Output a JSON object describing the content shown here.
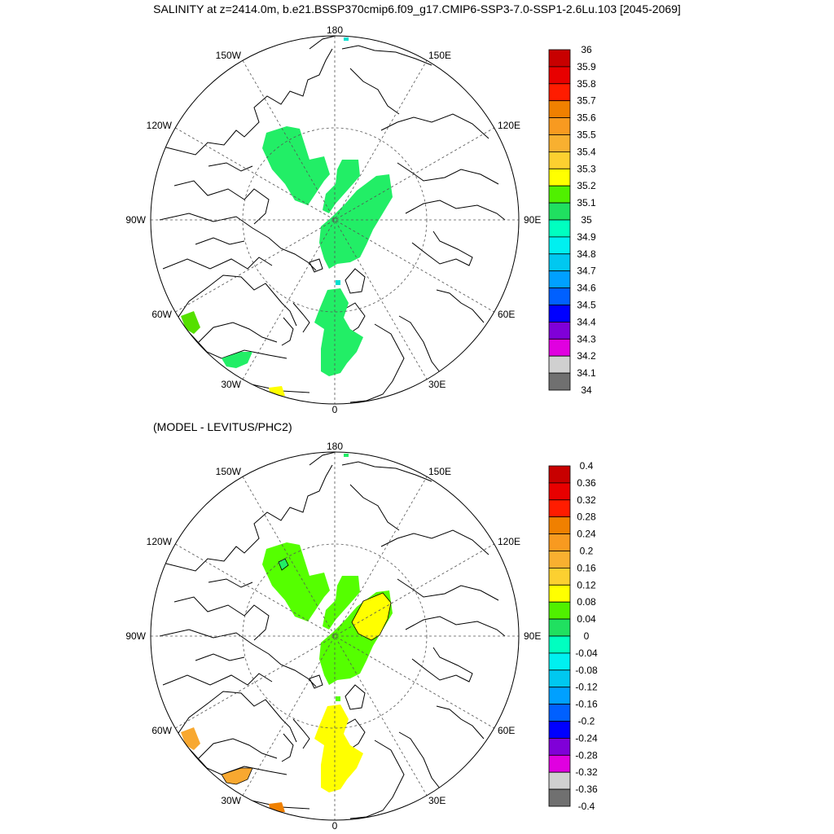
{
  "title": "SALINITY at z=2414.0m, b.e21.BSSP370cmip6.f09_g17.CMIP6-SSP3-7.0-SSP1-2.6Lu.103 [2045-2069]",
  "subtitle": "(MODEL - LEVITUS/PHC2)",
  "lon_labels": {
    "top": "180",
    "bottom": "0",
    "left": "90W",
    "right": "90E",
    "l150": "150W",
    "r150": "150E",
    "l120": "120W",
    "r120": "120E",
    "l60": "60W",
    "r60": "60E",
    "l30": "30W",
    "r30": "30E"
  },
  "top_colorbar": {
    "labels": [
      "36",
      "35.9",
      "35.8",
      "35.7",
      "35.6",
      "35.5",
      "35.4",
      "35.3",
      "35.2",
      "35.1",
      "35",
      "34.9",
      "34.8",
      "34.7",
      "34.6",
      "34.5",
      "34.4",
      "34.3",
      "34.2",
      "34.1",
      "34"
    ],
    "colors": [
      "#c80000",
      "#e80000",
      "#ff1c00",
      "#f08000",
      "#f89a20",
      "#f8b030",
      "#fcd030",
      "#ffff00",
      "#50f000",
      "#20e060",
      "#00ffc0",
      "#00f0f0",
      "#00c8f0",
      "#00a0ff",
      "#0060ff",
      "#0000ff",
      "#8000d8",
      "#e000e0",
      "#d0d0d0",
      "#707070"
    ]
  },
  "bottom_colorbar": {
    "labels": [
      "0.4",
      "0.36",
      "0.32",
      "0.28",
      "0.24",
      "0.2",
      "0.16",
      "0.12",
      "0.08",
      "0.04",
      "0",
      "-0.04",
      "-0.08",
      "-0.12",
      "-0.16",
      "-0.2",
      "-0.24",
      "-0.28",
      "-0.32",
      "-0.36",
      "-0.4"
    ],
    "colors": [
      "#c80000",
      "#e80000",
      "#ff1c00",
      "#f08000",
      "#f89a20",
      "#f8b030",
      "#fcd030",
      "#ffff00",
      "#50f000",
      "#20e060",
      "#00ffc0",
      "#00f0f0",
      "#00c8f0",
      "#00a0ff",
      "#0060ff",
      "#0000ff",
      "#8000d8",
      "#e000e0",
      "#d0d0d0",
      "#707070"
    ]
  },
  "colors": {
    "green": "#55ff00",
    "sea_green": "#22ee66",
    "yellow": "#ffff00",
    "orange": "#f8a830",
    "cyan": "#00e0d0"
  }
}
